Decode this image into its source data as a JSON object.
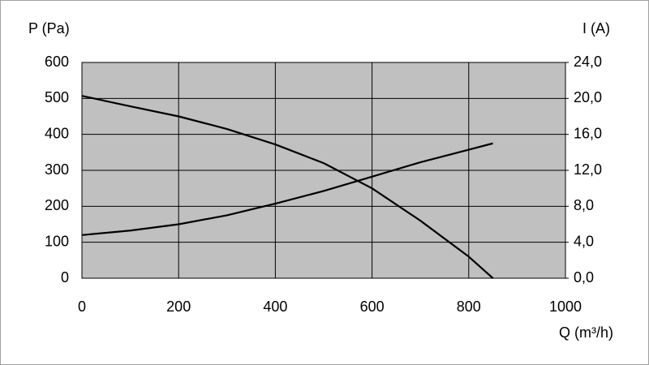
{
  "chart_data": {
    "type": "line",
    "ylabel": "P (Pa)",
    "y2label": "I (A)",
    "xlabel": "Q (m³/h)",
    "x": [
      0,
      100,
      200,
      300,
      400,
      500,
      600,
      700,
      800,
      850
    ],
    "series": [
      {
        "color": "#000000",
        "values": [
          507,
          478,
          450,
          415,
          372,
          320,
          250,
          160,
          60,
          0
        ]
      },
      {
        "color": "#000000",
        "axis": "y2",
        "values": [
          4.8,
          5.3,
          6.0,
          7.0,
          8.3,
          9.7,
          11.3,
          12.9,
          14.3,
          15.0
        ]
      }
    ],
    "xlim": [
      0,
      1000
    ],
    "xticks": [
      0,
      200,
      400,
      600,
      800,
      1000
    ],
    "ylim": [
      0,
      600
    ],
    "yticks": [
      0,
      100,
      200,
      300,
      400,
      500,
      600
    ],
    "y2lim": [
      0,
      24
    ],
    "y2ticks": [
      {
        "value": 0,
        "label": "0,0"
      },
      {
        "value": 4,
        "label": "4,0"
      },
      {
        "value": 8,
        "label": "8,0"
      },
      {
        "value": 12,
        "label": "12,0"
      },
      {
        "value": 16,
        "label": "16,0"
      },
      {
        "value": 20,
        "label": "20,0"
      },
      {
        "value": 24,
        "label": "24,0"
      }
    ],
    "grid": true,
    "plot_background": "#c0c0c0"
  }
}
